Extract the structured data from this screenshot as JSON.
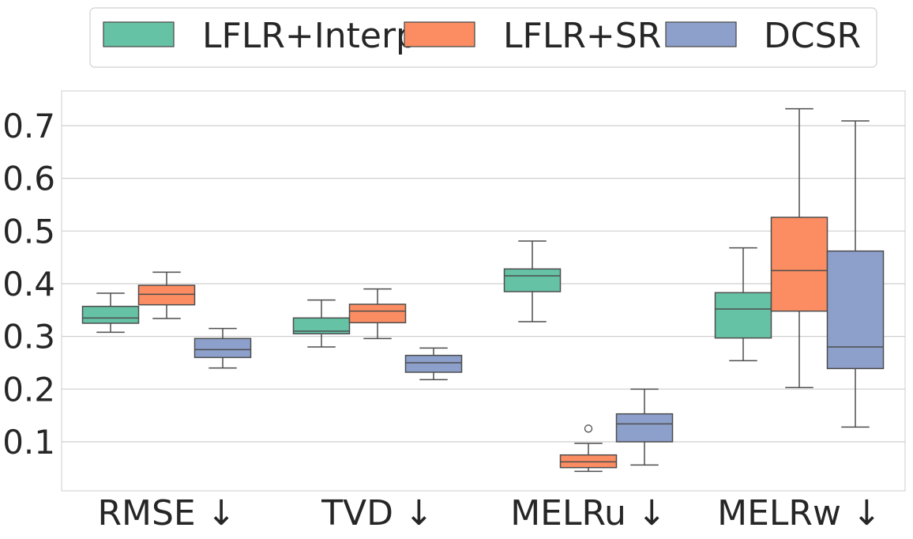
{
  "chart_data": {
    "type": "boxplot",
    "title": "",
    "xlabel": "",
    "ylabel": "",
    "ylim": [
      0.0,
      0.77
    ],
    "yticks": [
      0.1,
      0.2,
      0.3,
      0.4,
      0.5,
      0.6,
      0.7
    ],
    "ytick_labels": [
      "0.1",
      "0.2",
      "0.3",
      "0.4",
      "0.5",
      "0.6",
      "0.7"
    ],
    "grid": "horizontal",
    "legend_position": "top-center",
    "categories": [
      "RMSE ↓",
      "TVD ↓",
      "MELRu ↓",
      "MELRw ↓"
    ],
    "series": [
      {
        "name": "LFLR+Interp",
        "color": "#66c2a5",
        "boxes": [
          {
            "whislo": 0.308,
            "q1": 0.325,
            "med": 0.335,
            "q3": 0.357,
            "whishi": 0.382,
            "fliers": []
          },
          {
            "whislo": 0.28,
            "q1": 0.305,
            "med": 0.31,
            "q3": 0.335,
            "whishi": 0.369,
            "fliers": []
          },
          {
            "whislo": 0.328,
            "q1": 0.385,
            "med": 0.415,
            "q3": 0.428,
            "whishi": 0.481,
            "fliers": []
          },
          {
            "whislo": 0.254,
            "q1": 0.297,
            "med": 0.352,
            "q3": 0.383,
            "whishi": 0.468,
            "fliers": []
          }
        ]
      },
      {
        "name": "LFLR+SR",
        "color": "#fc8d62",
        "boxes": [
          {
            "whislo": 0.334,
            "q1": 0.36,
            "med": 0.38,
            "q3": 0.397,
            "whishi": 0.422,
            "fliers": []
          },
          {
            "whislo": 0.296,
            "q1": 0.326,
            "med": 0.348,
            "q3": 0.361,
            "whishi": 0.39,
            "fliers": []
          },
          {
            "whislo": 0.044,
            "q1": 0.051,
            "med": 0.062,
            "q3": 0.075,
            "whishi": 0.097,
            "fliers": [
              0.125
            ]
          },
          {
            "whislo": 0.203,
            "q1": 0.348,
            "med": 0.425,
            "q3": 0.526,
            "whishi": 0.732,
            "fliers": []
          }
        ]
      },
      {
        "name": "DCSR",
        "color": "#8da0cb",
        "boxes": [
          {
            "whislo": 0.24,
            "q1": 0.26,
            "med": 0.275,
            "q3": 0.296,
            "whishi": 0.315,
            "fliers": []
          },
          {
            "whislo": 0.218,
            "q1": 0.232,
            "med": 0.25,
            "q3": 0.264,
            "whishi": 0.278,
            "fliers": []
          },
          {
            "whislo": 0.056,
            "q1": 0.1,
            "med": 0.134,
            "q3": 0.153,
            "whishi": 0.2,
            "fliers": []
          },
          {
            "whislo": 0.128,
            "q1": 0.239,
            "med": 0.28,
            "q3": 0.462,
            "whishi": 0.709,
            "fliers": []
          }
        ]
      }
    ]
  }
}
